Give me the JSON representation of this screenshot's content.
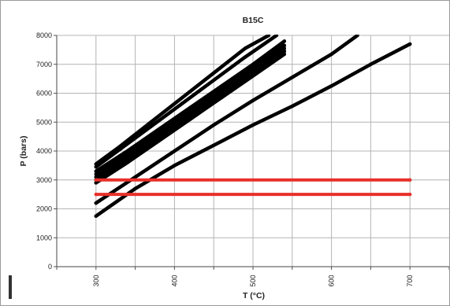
{
  "chart_data": {
    "type": "line",
    "title": "B15C",
    "xlabel": "T (°C)",
    "ylabel": "P (bars)",
    "xlim": [
      300,
      700
    ],
    "ylim": [
      0,
      8000
    ],
    "x_ticks": [
      "300",
      "400",
      "500",
      "600",
      "700"
    ],
    "y_ticks": [
      "0",
      "1000",
      "2000",
      "3000",
      "4000",
      "5000",
      "6000",
      "7000",
      "8000"
    ],
    "grid": true,
    "legend": "none",
    "series": [
      {
        "color": "#000000",
        "x": [
          300,
          330,
          370,
          410,
          450,
          490,
          520
        ],
        "y": [
          3550,
          4150,
          5000,
          5850,
          6700,
          7550,
          8000
        ]
      },
      {
        "color": "#000000",
        "x": [
          300,
          330,
          370,
          410,
          450,
          490,
          530
        ],
        "y": [
          3450,
          4050,
          4850,
          5650,
          6450,
          7250,
          8000
        ]
      },
      {
        "color": "#000000",
        "x": [
          300,
          340,
          380,
          420,
          460,
          500,
          540
        ],
        "y": [
          3300,
          4000,
          4750,
          5500,
          6250,
          7000,
          7800
        ]
      },
      {
        "color": "#000000",
        "x": [
          300,
          340,
          380,
          420,
          460,
          500,
          540
        ],
        "y": [
          3200,
          3900,
          4650,
          5400,
          6150,
          6900,
          7650
        ]
      },
      {
        "color": "#000000",
        "x": [
          300,
          340,
          380,
          420,
          460,
          500,
          540
        ],
        "y": [
          3100,
          3800,
          4550,
          5300,
          6050,
          6800,
          7550
        ]
      },
      {
        "color": "#000000",
        "x": [
          300,
          340,
          380,
          420,
          460,
          500,
          540
        ],
        "y": [
          3000,
          3700,
          4450,
          5200,
          5950,
          6700,
          7450
        ]
      },
      {
        "color": "#000000",
        "x": [
          300,
          340,
          380,
          420,
          460,
          500,
          540
        ],
        "y": [
          2900,
          3600,
          4350,
          5100,
          5850,
          6600,
          7350
        ]
      },
      {
        "color": "#000000",
        "x": [
          300,
          350,
          400,
          450,
          500,
          550,
          600,
          633
        ],
        "y": [
          2200,
          3100,
          4000,
          4900,
          5750,
          6550,
          7350,
          8000
        ]
      },
      {
        "color": "#000000",
        "x": [
          300,
          350,
          400,
          450,
          500,
          550,
          600,
          650,
          700
        ],
        "y": [
          1750,
          2700,
          3500,
          4200,
          4900,
          5550,
          6250,
          7000,
          7700
        ]
      },
      {
        "color": "#e8302a",
        "x": [
          300,
          700
        ],
        "y": [
          3000,
          3000
        ]
      },
      {
        "color": "#e8302a",
        "x": [
          300,
          700
        ],
        "y": [
          2500,
          2500
        ]
      }
    ]
  }
}
